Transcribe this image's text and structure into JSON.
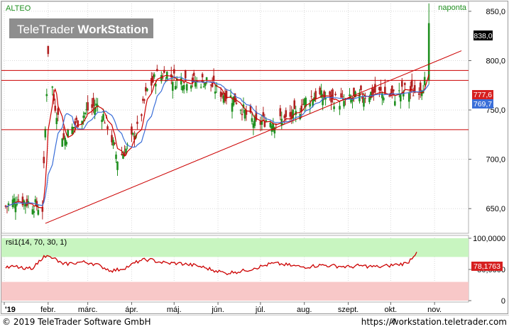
{
  "instrument": "ALTEO",
  "period": "naponta",
  "watermark": {
    "brand_light": "TeleTrader ",
    "brand_bold": "WorkStation"
  },
  "price_badges": {
    "last": "838,0",
    "level_red": "777,6",
    "ma_blue": "769,7"
  },
  "rsi": {
    "label": "rsi1(14, 70, 30, 1)",
    "badge": "78,1763"
  },
  "footer": {
    "copyright": "© 2019 TeleTrader Software GmbH",
    "arrow": "↗",
    "url": "https://workstation.teletrader.com"
  },
  "colors": {
    "up": "#1f8f1f",
    "down": "#b02020",
    "ma_red": "#cc0000",
    "ma_blue": "#3a6ed8",
    "rsi_line": "#cc0000",
    "overbought_band": "#c8f5c0",
    "oversold_band": "#f8c8c8"
  },
  "chart_data": [
    {
      "type": "candlestick",
      "title": "ALTEO",
      "timeframe": "naponta",
      "ylim": [
        625,
        860
      ],
      "y_ticks": [
        650,
        700,
        750,
        800,
        850
      ],
      "y_tick_labels": [
        "650,0",
        "700,0",
        "750,0",
        "800,0",
        "850,0"
      ],
      "x_tick_labels": [
        "'19",
        "febr.",
        "márc.",
        "ápr.",
        "máj.",
        "jún.",
        "júl.",
        "aug.",
        "szept.",
        "okt.",
        "nov."
      ],
      "horizontal_levels": [
        790,
        780,
        730
      ],
      "trendline": {
        "from": {
          "x": "2019-01-30",
          "y": 635
        },
        "to": {
          "x": "2019-11-20",
          "y": 810
        }
      },
      "series": [
        {
          "name": "candles",
          "description": "daily OHLC, approximate",
          "points": [
            {
              "x": "2019-01-02",
              "c": 652
            },
            {
              "x": "2019-01-10",
              "c": 660
            },
            {
              "x": "2019-01-20",
              "c": 655
            },
            {
              "x": "2019-01-28",
              "c": 650
            },
            {
              "x": "2019-02-01",
              "c": 810
            },
            {
              "x": "2019-02-05",
              "c": 760
            },
            {
              "x": "2019-02-12",
              "c": 720
            },
            {
              "x": "2019-02-20",
              "c": 735
            },
            {
              "x": "2019-03-01",
              "c": 750
            },
            {
              "x": "2019-03-08",
              "c": 755
            },
            {
              "x": "2019-03-15",
              "c": 735
            },
            {
              "x": "2019-03-22",
              "c": 700
            },
            {
              "x": "2019-03-29",
              "c": 712
            },
            {
              "x": "2019-04-05",
              "c": 730
            },
            {
              "x": "2019-04-12",
              "c": 770
            },
            {
              "x": "2019-04-19",
              "c": 785
            },
            {
              "x": "2019-04-26",
              "c": 787
            },
            {
              "x": "2019-05-03",
              "c": 780
            },
            {
              "x": "2019-05-10",
              "c": 782
            },
            {
              "x": "2019-05-17",
              "c": 778
            },
            {
              "x": "2019-05-24",
              "c": 780
            },
            {
              "x": "2019-05-31",
              "c": 770
            },
            {
              "x": "2019-06-07",
              "c": 765
            },
            {
              "x": "2019-06-14",
              "c": 760
            },
            {
              "x": "2019-06-21",
              "c": 745
            },
            {
              "x": "2019-06-28",
              "c": 735
            },
            {
              "x": "2019-07-05",
              "c": 740
            },
            {
              "x": "2019-07-12",
              "c": 738
            },
            {
              "x": "2019-07-19",
              "c": 740
            },
            {
              "x": "2019-07-26",
              "c": 745
            },
            {
              "x": "2019-08-02",
              "c": 760
            },
            {
              "x": "2019-08-09",
              "c": 765
            },
            {
              "x": "2019-08-16",
              "c": 762
            },
            {
              "x": "2019-08-23",
              "c": 760
            },
            {
              "x": "2019-08-30",
              "c": 758
            },
            {
              "x": "2019-09-06",
              "c": 762
            },
            {
              "x": "2019-09-13",
              "c": 765
            },
            {
              "x": "2019-09-20",
              "c": 768
            },
            {
              "x": "2019-09-27",
              "c": 766
            },
            {
              "x": "2019-10-04",
              "c": 764
            },
            {
              "x": "2019-10-11",
              "c": 770
            },
            {
              "x": "2019-10-18",
              "c": 768
            },
            {
              "x": "2019-10-25",
              "c": 778
            },
            {
              "x": "2019-10-28",
              "c": 838
            }
          ]
        },
        {
          "name": "MA (red)",
          "last": 777.6
        },
        {
          "name": "MA (blue)",
          "last": 769.7
        }
      ]
    },
    {
      "type": "line",
      "title": "rsi1(14, 70, 30, 1)",
      "ylim": [
        0,
        100
      ],
      "y_ticks": [
        0,
        50,
        100
      ],
      "y_tick_labels": [
        "0",
        "50,0000",
        "100,0000"
      ],
      "bands": [
        {
          "from": 70,
          "to": 100,
          "color": "green"
        },
        {
          "from": 0,
          "to": 30,
          "color": "red"
        }
      ],
      "series": [
        {
          "name": "rsi",
          "last": 78.1763,
          "values": [
            52,
            55,
            50,
            54,
            72,
            68,
            58,
            60,
            62,
            60,
            55,
            48,
            50,
            56,
            64,
            66,
            62,
            60,
            60,
            58,
            56,
            52,
            48,
            44,
            46,
            48,
            52,
            56,
            60,
            58,
            56,
            54,
            55,
            57,
            56,
            55,
            54,
            56,
            55,
            54,
            56,
            58,
            60,
            78
          ]
        }
      ]
    }
  ]
}
